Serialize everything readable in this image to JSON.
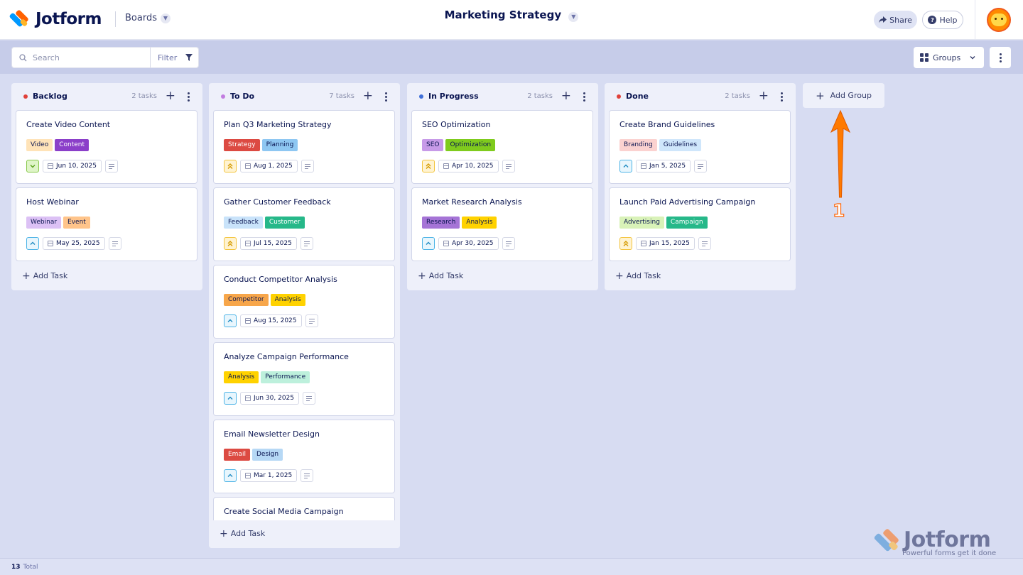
{
  "header": {
    "logo_text": "Jotform",
    "boards_label": "Boards",
    "board_title": "Marketing Strategy",
    "share_label": "Share",
    "help_label": "Help"
  },
  "toolbar": {
    "search_placeholder": "Search",
    "filter_label": "Filter",
    "groups_label": "Groups"
  },
  "columns": [
    {
      "title": "Backlog",
      "count": "2 tasks",
      "dot_color": "#e0413a",
      "cards": [
        {
          "title": "Create Video Content",
          "priority": "low",
          "date": "Jun 10, 2025",
          "tags": [
            {
              "label": "Video",
              "bg": "#ffe3b8",
              "fg": "#0a1551"
            },
            {
              "label": "Content",
              "bg": "#8b3fc9",
              "fg": "#ffffff"
            }
          ]
        },
        {
          "title": "Host Webinar",
          "priority": "medium",
          "date": "May 25, 2025",
          "tags": [
            {
              "label": "Webinar",
              "bg": "#dcc1f5",
              "fg": "#0a1551"
            },
            {
              "label": "Event",
              "bg": "#ffc48a",
              "fg": "#0a1551"
            }
          ]
        }
      ],
      "add_task": "Add Task"
    },
    {
      "title": "To Do",
      "count": "7 tasks",
      "dot_color": "#c27de0",
      "cards": [
        {
          "title": "Plan Q3 Marketing Strategy",
          "priority": "high",
          "date": "Aug 1, 2025",
          "tags": [
            {
              "label": "Strategy",
              "bg": "#dc4a42",
              "fg": "#ffffff"
            },
            {
              "label": "Planning",
              "bg": "#8ec7f2",
              "fg": "#0a1551"
            }
          ]
        },
        {
          "title": "Gather Customer Feedback",
          "priority": "high",
          "date": "Jul 15, 2025",
          "tags": [
            {
              "label": "Feedback",
              "bg": "#c9e3fa",
              "fg": "#0a1551"
            },
            {
              "label": "Customer",
              "bg": "#26b889",
              "fg": "#ffffff"
            }
          ]
        },
        {
          "title": "Conduct Competitor Analysis",
          "priority": "medium",
          "date": "Aug 15, 2025",
          "tags": [
            {
              "label": "Competitor",
              "bg": "#f7a64a",
              "fg": "#0a1551"
            },
            {
              "label": "Analysis",
              "bg": "#ffd200",
              "fg": "#0a1551"
            }
          ]
        },
        {
          "title": "Analyze Campaign Performance",
          "priority": "medium",
          "date": "Jun 30, 2025",
          "tags": [
            {
              "label": "Analysis",
              "bg": "#ffd200",
              "fg": "#0a1551"
            },
            {
              "label": "Performance",
              "bg": "#bdf0dc",
              "fg": "#0a1551"
            }
          ]
        },
        {
          "title": "Email Newsletter Design",
          "priority": "medium",
          "date": "Mar 1, 2025",
          "tags": [
            {
              "label": "Email",
              "bg": "#dc4a42",
              "fg": "#ffffff"
            },
            {
              "label": "Design",
              "bg": "#b6d8f5",
              "fg": "#0a1551"
            }
          ]
        },
        {
          "title": "Create Social Media Campaign",
          "priority": "",
          "date": "",
          "tags": []
        }
      ],
      "add_task": "Add Task"
    },
    {
      "title": "In Progress",
      "count": "2 tasks",
      "dot_color": "#3f6fd8",
      "cards": [
        {
          "title": "SEO Optimization",
          "priority": "high",
          "date": "Apr 10, 2025",
          "tags": [
            {
              "label": "SEO",
              "bg": "#c79ae8",
              "fg": "#0a1551"
            },
            {
              "label": "Optimization",
              "bg": "#7fcb1d",
              "fg": "#0a1551"
            }
          ]
        },
        {
          "title": "Market Research Analysis",
          "priority": "medium",
          "date": "Apr 30, 2025",
          "tags": [
            {
              "label": "Research",
              "bg": "#a574d6",
              "fg": "#0a1551"
            },
            {
              "label": "Analysis",
              "bg": "#ffd200",
              "fg": "#0a1551"
            }
          ]
        }
      ],
      "add_task": "Add Task"
    },
    {
      "title": "Done",
      "count": "2 tasks",
      "dot_color": "#e0413a",
      "cards": [
        {
          "title": "Create Brand Guidelines",
          "priority": "medium",
          "date": "Jan 5, 2025",
          "tags": [
            {
              "label": "Branding",
              "bg": "#fbd2d0",
              "fg": "#0a1551"
            },
            {
              "label": "Guidelines",
              "bg": "#cfe6fb",
              "fg": "#0a1551"
            }
          ]
        },
        {
          "title": "Launch Paid Advertising Campaign",
          "priority": "high",
          "date": "Jan 15, 2025",
          "tags": [
            {
              "label": "Advertising",
              "bg": "#d9f2b8",
              "fg": "#0a1551"
            },
            {
              "label": "Campaign",
              "bg": "#26b889",
              "fg": "#ffffff"
            }
          ]
        }
      ],
      "add_task": "Add Task"
    }
  ],
  "add_group_label": "Add Group",
  "annotation": {
    "number": "1",
    "color": "#ff6100"
  },
  "footer": {
    "count": "13",
    "label": "Total"
  },
  "watermark": {
    "brand": "Jotform",
    "tagline": "Powerful forms get it done"
  }
}
